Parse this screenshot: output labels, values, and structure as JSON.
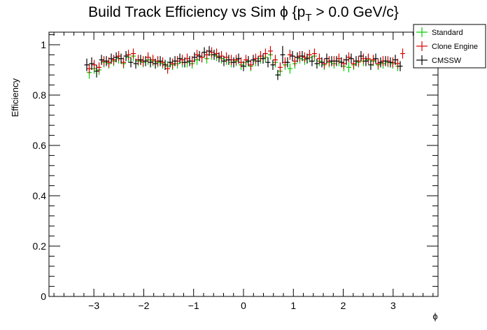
{
  "chart_data": {
    "type": "scatter",
    "title": "Build Track Efficiency vs Sim ϕ {p",
    "title_sub": "T",
    "title_tail": " > 0.0 GeV/c}",
    "xlabel": "ϕ",
    "ylabel": "Efficiency",
    "xlim": [
      -3.9,
      3.9
    ],
    "ylim": [
      0,
      1.05
    ],
    "x_ticks": [
      -3,
      -2,
      -1,
      0,
      1,
      2,
      3
    ],
    "x_tick_labels": [
      "−3",
      "−2",
      "−1",
      "0",
      "1",
      "2",
      "3"
    ],
    "y_ticks": [
      0,
      0.2,
      0.4,
      0.6,
      0.8,
      1
    ],
    "y_tick_labels": [
      "0",
      "0.2",
      "0.4",
      "0.6",
      "0.8",
      "1"
    ],
    "grid": false,
    "legend_position": "top-right",
    "x_bin_half_width": 0.0491,
    "series": [
      {
        "name": "Standard",
        "color": "#00cc00",
        "x": [
          -3.093,
          -2.994,
          -2.896,
          -2.798,
          -2.7,
          -2.602,
          -2.503,
          -2.405,
          -2.307,
          -2.209,
          -2.111,
          -2.012,
          -1.914,
          -1.816,
          -1.718,
          -1.62,
          -1.521,
          -1.423,
          -1.325,
          -1.227,
          -1.129,
          -1.03,
          -0.932,
          -0.834,
          -0.736,
          -0.638,
          -0.54,
          -0.441,
          -0.343,
          -0.245,
          -0.147,
          -0.049,
          0.049,
          0.147,
          0.245,
          0.343,
          0.441,
          0.54,
          0.638,
          0.736,
          0.834,
          0.932,
          1.03,
          1.129,
          1.227,
          1.325,
          1.423,
          1.521,
          1.62,
          1.718,
          1.816,
          1.914,
          2.012,
          2.111,
          2.209,
          2.307,
          2.405,
          2.503,
          2.602,
          2.7,
          2.798,
          2.896,
          2.994,
          3.093
        ],
        "y": [
          0.89,
          0.905,
          0.9,
          0.93,
          0.925,
          0.935,
          0.945,
          0.925,
          0.95,
          0.955,
          0.935,
          0.93,
          0.94,
          0.935,
          0.93,
          0.925,
          0.915,
          0.92,
          0.925,
          0.93,
          0.93,
          0.925,
          0.94,
          0.95,
          0.945,
          0.96,
          0.955,
          0.945,
          0.94,
          0.93,
          0.935,
          0.92,
          0.93,
          0.915,
          0.935,
          0.945,
          0.95,
          0.96,
          0.93,
          0.895,
          0.92,
          0.905,
          0.925,
          0.945,
          0.94,
          0.95,
          0.955,
          0.935,
          0.92,
          0.93,
          0.925,
          0.935,
          0.915,
          0.91,
          0.92,
          0.93,
          0.935,
          0.94,
          0.935,
          0.92,
          0.925,
          0.93,
          0.925,
          0.915
        ],
        "err": [
          0.025,
          0.02,
          0.02,
          0.02,
          0.02,
          0.02,
          0.02,
          0.02,
          0.02,
          0.02,
          0.02,
          0.02,
          0.02,
          0.02,
          0.02,
          0.02,
          0.02,
          0.02,
          0.02,
          0.02,
          0.02,
          0.02,
          0.02,
          0.02,
          0.02,
          0.02,
          0.02,
          0.02,
          0.02,
          0.02,
          0.02,
          0.02,
          0.02,
          0.02,
          0.02,
          0.02,
          0.02,
          0.02,
          0.02,
          0.02,
          0.02,
          0.02,
          0.02,
          0.02,
          0.02,
          0.02,
          0.02,
          0.02,
          0.02,
          0.02,
          0.02,
          0.02,
          0.02,
          0.02,
          0.02,
          0.02,
          0.02,
          0.02,
          0.02,
          0.02,
          0.02,
          0.02,
          0.02,
          0.02
        ]
      },
      {
        "name": "Clone Engine",
        "color": "#dd0000",
        "x": [
          -3.093,
          -2.994,
          -2.896,
          -2.798,
          -2.7,
          -2.602,
          -2.503,
          -2.405,
          -2.307,
          -2.209,
          -2.111,
          -2.012,
          -1.914,
          -1.816,
          -1.718,
          -1.62,
          -1.521,
          -1.423,
          -1.325,
          -1.227,
          -1.129,
          -1.03,
          -0.932,
          -0.834,
          -0.736,
          -0.638,
          -0.54,
          -0.441,
          -0.343,
          -0.245,
          -0.147,
          -0.049,
          0.049,
          0.147,
          0.245,
          0.343,
          0.441,
          0.54,
          0.638,
          0.736,
          0.834,
          0.932,
          1.03,
          1.129,
          1.227,
          1.325,
          1.423,
          1.521,
          1.62,
          1.718,
          1.816,
          1.914,
          2.012,
          2.111,
          2.209,
          2.307,
          2.405,
          2.503,
          2.602,
          2.7,
          2.798,
          2.896,
          2.994,
          3.093,
          3.191
        ],
        "y": [
          0.905,
          0.92,
          0.91,
          0.935,
          0.93,
          0.94,
          0.955,
          0.93,
          0.96,
          0.965,
          0.94,
          0.935,
          0.95,
          0.94,
          0.935,
          0.93,
          0.905,
          0.925,
          0.935,
          0.94,
          0.945,
          0.935,
          0.96,
          0.95,
          0.96,
          0.97,
          0.965,
          0.955,
          0.95,
          0.94,
          0.94,
          0.93,
          0.94,
          0.92,
          0.945,
          0.955,
          0.965,
          0.975,
          0.94,
          0.91,
          0.93,
          0.96,
          0.935,
          0.955,
          0.95,
          0.96,
          0.965,
          0.945,
          0.925,
          0.935,
          0.935,
          0.945,
          0.925,
          0.95,
          0.925,
          0.935,
          0.945,
          0.945,
          0.94,
          0.925,
          0.935,
          0.935,
          0.93,
          0.925,
          0.965
        ],
        "err": [
          0.02,
          0.02,
          0.02,
          0.02,
          0.02,
          0.02,
          0.02,
          0.02,
          0.02,
          0.02,
          0.02,
          0.02,
          0.02,
          0.02,
          0.02,
          0.02,
          0.02,
          0.02,
          0.02,
          0.02,
          0.02,
          0.02,
          0.02,
          0.02,
          0.02,
          0.02,
          0.02,
          0.02,
          0.02,
          0.02,
          0.02,
          0.02,
          0.02,
          0.02,
          0.02,
          0.02,
          0.02,
          0.02,
          0.02,
          0.02,
          0.02,
          0.02,
          0.02,
          0.02,
          0.02,
          0.02,
          0.02,
          0.02,
          0.02,
          0.02,
          0.02,
          0.02,
          0.02,
          0.02,
          0.02,
          0.02,
          0.02,
          0.02,
          0.02,
          0.02,
          0.02,
          0.02,
          0.02,
          0.02,
          0.02
        ]
      },
      {
        "name": "CMSSW",
        "color": "#000000",
        "x": [
          -3.142,
          -3.044,
          -2.945,
          -2.847,
          -2.749,
          -2.651,
          -2.552,
          -2.454,
          -2.356,
          -2.258,
          -2.16,
          -2.062,
          -1.963,
          -1.865,
          -1.767,
          -1.669,
          -1.571,
          -1.472,
          -1.374,
          -1.276,
          -1.178,
          -1.08,
          -0.982,
          -0.883,
          -0.785,
          -0.687,
          -0.589,
          -0.491,
          -0.393,
          -0.295,
          -0.196,
          -0.098,
          0.0,
          0.098,
          0.196,
          0.295,
          0.393,
          0.491,
          0.589,
          0.687,
          0.785,
          0.883,
          0.982,
          1.08,
          1.178,
          1.276,
          1.374,
          1.472,
          1.571,
          1.669,
          1.767,
          1.865,
          1.963,
          2.062,
          2.16,
          2.258,
          2.356,
          2.454,
          2.552,
          2.651,
          2.749,
          2.847,
          2.945,
          3.044,
          3.142
        ],
        "y": [
          0.92,
          0.925,
          0.895,
          0.94,
          0.935,
          0.945,
          0.95,
          0.945,
          0.955,
          0.93,
          0.925,
          0.94,
          0.935,
          0.93,
          0.925,
          0.935,
          0.92,
          0.93,
          0.935,
          0.945,
          0.93,
          0.935,
          0.95,
          0.955,
          0.97,
          0.975,
          0.96,
          0.95,
          0.935,
          0.94,
          0.93,
          0.945,
          0.915,
          0.935,
          0.94,
          0.935,
          0.945,
          0.93,
          0.92,
          0.88,
          0.96,
          0.93,
          0.955,
          0.95,
          0.955,
          0.945,
          0.935,
          0.925,
          0.93,
          0.945,
          0.935,
          0.935,
          0.93,
          0.94,
          0.945,
          0.935,
          0.955,
          0.935,
          0.92,
          0.945,
          0.93,
          0.935,
          0.93,
          0.94,
          0.915
        ],
        "err": [
          0.025,
          0.025,
          0.025,
          0.02,
          0.02,
          0.02,
          0.02,
          0.02,
          0.02,
          0.02,
          0.02,
          0.02,
          0.02,
          0.02,
          0.02,
          0.02,
          0.02,
          0.02,
          0.02,
          0.02,
          0.02,
          0.02,
          0.02,
          0.02,
          0.02,
          0.02,
          0.02,
          0.02,
          0.02,
          0.02,
          0.02,
          0.02,
          0.02,
          0.02,
          0.02,
          0.02,
          0.02,
          0.02,
          0.02,
          0.02,
          0.035,
          0.02,
          0.02,
          0.02,
          0.02,
          0.02,
          0.02,
          0.02,
          0.02,
          0.02,
          0.02,
          0.02,
          0.02,
          0.02,
          0.02,
          0.02,
          0.02,
          0.02,
          0.02,
          0.02,
          0.02,
          0.02,
          0.02,
          0.02,
          0.02
        ]
      }
    ]
  }
}
